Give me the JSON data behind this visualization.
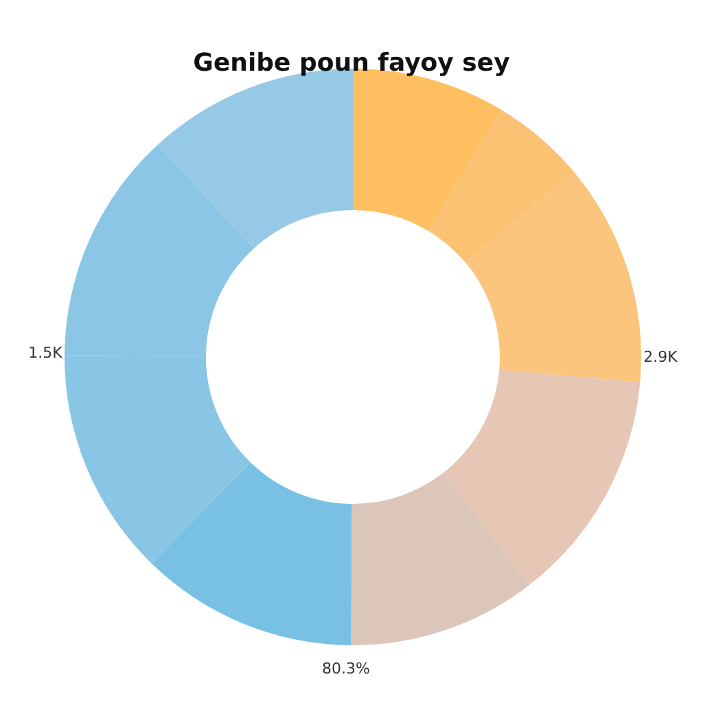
{
  "chart_data": {
    "type": "donut",
    "title": "Genibe poun fayoy sey",
    "categories": [
      null,
      null,
      null,
      null,
      null,
      null,
      null,
      null,
      null
    ],
    "values": [
      8.6,
      5.3,
      12.5,
      13.1,
      10.6,
      12.2,
      12.8,
      13.1,
      11.8
    ],
    "colors": [
      "#fdbf5f",
      "#fcc274",
      "#fcc57d",
      "#e6c7b6",
      "#dcc6ba",
      "#78c1e5",
      "#89c6e6",
      "#8cc6e6",
      "#96c9e6"
    ],
    "annotations": [
      "1.5K",
      "2.9K",
      "80.3%"
    ]
  }
}
